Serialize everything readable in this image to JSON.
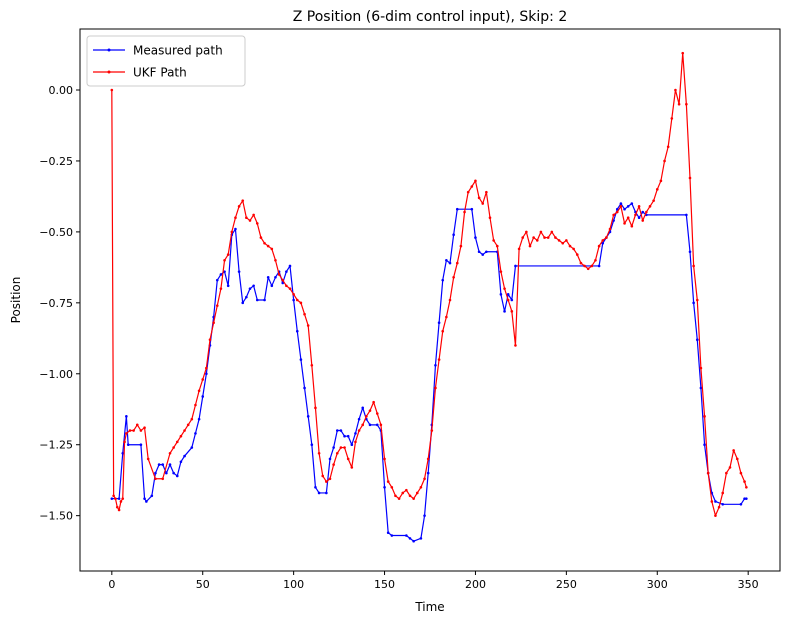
{
  "chart_data": {
    "type": "line",
    "title": "Z Position (6-dim control input), Skip: 2",
    "xlabel": "Time",
    "ylabel": "Position",
    "xlim": [
      -17.5,
      367.5
    ],
    "ylim": [
      -1.695,
      0.215
    ],
    "xticks": [
      0,
      50,
      100,
      150,
      200,
      250,
      300,
      350
    ],
    "xtick_labels": [
      "0",
      "50",
      "100",
      "150",
      "200",
      "250",
      "300",
      "350"
    ],
    "yticks": [
      0.0,
      -0.25,
      -0.5,
      -0.75,
      -1.0,
      -1.25,
      -1.5
    ],
    "ytick_labels": [
      "0.00",
      "−0.25",
      "−0.50",
      "−0.75",
      "−1.00",
      "−1.25",
      "−1.50"
    ],
    "grid": false,
    "legend": {
      "position": "top-left"
    },
    "series": [
      {
        "name": "Measured path",
        "color": "#0000ff",
        "points": [
          [
            0,
            -1.44
          ],
          [
            4,
            -1.44
          ],
          [
            6,
            -1.28
          ],
          [
            8,
            -1.15
          ],
          [
            9,
            -1.25
          ],
          [
            16,
            -1.25
          ],
          [
            18,
            -1.44
          ],
          [
            19,
            -1.45
          ],
          [
            22,
            -1.43
          ],
          [
            24,
            -1.35
          ],
          [
            26,
            -1.32
          ],
          [
            28,
            -1.32
          ],
          [
            30,
            -1.35
          ],
          [
            32,
            -1.32
          ],
          [
            34,
            -1.35
          ],
          [
            36,
            -1.36
          ],
          [
            38,
            -1.31
          ],
          [
            40,
            -1.29
          ],
          [
            44,
            -1.26
          ],
          [
            46,
            -1.21
          ],
          [
            48,
            -1.16
          ],
          [
            50,
            -1.08
          ],
          [
            52,
            -1.0
          ],
          [
            54,
            -0.9
          ],
          [
            56,
            -0.8
          ],
          [
            58,
            -0.67
          ],
          [
            60,
            -0.65
          ],
          [
            62,
            -0.64
          ],
          [
            64,
            -0.69
          ],
          [
            66,
            -0.51
          ],
          [
            68,
            -0.49
          ],
          [
            70,
            -0.64
          ],
          [
            72,
            -0.75
          ],
          [
            74,
            -0.73
          ],
          [
            76,
            -0.7
          ],
          [
            78,
            -0.69
          ],
          [
            80,
            -0.74
          ],
          [
            84,
            -0.74
          ],
          [
            86,
            -0.66
          ],
          [
            88,
            -0.69
          ],
          [
            90,
            -0.66
          ],
          [
            92,
            -0.64
          ],
          [
            94,
            -0.68
          ],
          [
            96,
            -0.64
          ],
          [
            98,
            -0.62
          ],
          [
            100,
            -0.74
          ],
          [
            102,
            -0.85
          ],
          [
            104,
            -0.95
          ],
          [
            106,
            -1.05
          ],
          [
            108,
            -1.15
          ],
          [
            110,
            -1.25
          ],
          [
            112,
            -1.4
          ],
          [
            114,
            -1.42
          ],
          [
            118,
            -1.42
          ],
          [
            120,
            -1.3
          ],
          [
            122,
            -1.26
          ],
          [
            124,
            -1.2
          ],
          [
            126,
            -1.2
          ],
          [
            128,
            -1.22
          ],
          [
            130,
            -1.22
          ],
          [
            132,
            -1.25
          ],
          [
            134,
            -1.21
          ],
          [
            136,
            -1.16
          ],
          [
            138,
            -1.12
          ],
          [
            140,
            -1.16
          ],
          [
            142,
            -1.18
          ],
          [
            146,
            -1.18
          ],
          [
            148,
            -1.2
          ],
          [
            150,
            -1.4
          ],
          [
            152,
            -1.56
          ],
          [
            154,
            -1.57
          ],
          [
            162,
            -1.57
          ],
          [
            164,
            -1.58
          ],
          [
            166,
            -1.59
          ],
          [
            170,
            -1.58
          ],
          [
            172,
            -1.5
          ],
          [
            174,
            -1.35
          ],
          [
            176,
            -1.18
          ],
          [
            178,
            -0.97
          ],
          [
            180,
            -0.82
          ],
          [
            182,
            -0.67
          ],
          [
            184,
            -0.6
          ],
          [
            186,
            -0.61
          ],
          [
            188,
            -0.51
          ],
          [
            190,
            -0.42
          ],
          [
            198,
            -0.42
          ],
          [
            200,
            -0.52
          ],
          [
            202,
            -0.57
          ],
          [
            204,
            -0.58
          ],
          [
            206,
            -0.57
          ],
          [
            212,
            -0.57
          ],
          [
            214,
            -0.72
          ],
          [
            216,
            -0.78
          ],
          [
            218,
            -0.72
          ],
          [
            220,
            -0.74
          ],
          [
            222,
            -0.62
          ],
          [
            268,
            -0.62
          ],
          [
            270,
            -0.54
          ],
          [
            272,
            -0.52
          ],
          [
            274,
            -0.5
          ],
          [
            276,
            -0.46
          ],
          [
            278,
            -0.42
          ],
          [
            280,
            -0.4
          ],
          [
            282,
            -0.42
          ],
          [
            284,
            -0.41
          ],
          [
            286,
            -0.4
          ],
          [
            288,
            -0.43
          ],
          [
            290,
            -0.45
          ],
          [
            292,
            -0.43
          ],
          [
            294,
            -0.44
          ],
          [
            316,
            -0.44
          ],
          [
            318,
            -0.57
          ],
          [
            320,
            -0.75
          ],
          [
            322,
            -0.88
          ],
          [
            324,
            -1.05
          ],
          [
            326,
            -1.25
          ],
          [
            328,
            -1.35
          ],
          [
            330,
            -1.42
          ],
          [
            332,
            -1.45
          ],
          [
            336,
            -1.46
          ],
          [
            346,
            -1.46
          ],
          [
            348,
            -1.44
          ],
          [
            349,
            -1.44
          ]
        ]
      },
      {
        "name": "UKF Path",
        "color": "#ff0000",
        "points": [
          [
            0,
            0.0
          ],
          [
            1,
            -1.43
          ],
          [
            2,
            -1.44
          ],
          [
            3,
            -1.47
          ],
          [
            4,
            -1.48
          ],
          [
            5,
            -1.45
          ],
          [
            6,
            -1.44
          ],
          [
            7,
            -1.24
          ],
          [
            8,
            -1.21
          ],
          [
            10,
            -1.2
          ],
          [
            12,
            -1.2
          ],
          [
            14,
            -1.18
          ],
          [
            16,
            -1.2
          ],
          [
            18,
            -1.19
          ],
          [
            20,
            -1.3
          ],
          [
            24,
            -1.37
          ],
          [
            28,
            -1.37
          ],
          [
            32,
            -1.28
          ],
          [
            34,
            -1.26
          ],
          [
            36,
            -1.24
          ],
          [
            38,
            -1.22
          ],
          [
            40,
            -1.2
          ],
          [
            42,
            -1.18
          ],
          [
            44,
            -1.16
          ],
          [
            46,
            -1.11
          ],
          [
            48,
            -1.06
          ],
          [
            50,
            -1.02
          ],
          [
            52,
            -0.98
          ],
          [
            54,
            -0.88
          ],
          [
            56,
            -0.82
          ],
          [
            58,
            -0.76
          ],
          [
            60,
            -0.7
          ],
          [
            62,
            -0.6
          ],
          [
            64,
            -0.58
          ],
          [
            66,
            -0.5
          ],
          [
            68,
            -0.45
          ],
          [
            70,
            -0.41
          ],
          [
            72,
            -0.39
          ],
          [
            74,
            -0.45
          ],
          [
            76,
            -0.46
          ],
          [
            78,
            -0.44
          ],
          [
            80,
            -0.47
          ],
          [
            82,
            -0.52
          ],
          [
            84,
            -0.54
          ],
          [
            86,
            -0.55
          ],
          [
            88,
            -0.56
          ],
          [
            90,
            -0.6
          ],
          [
            92,
            -0.65
          ],
          [
            94,
            -0.67
          ],
          [
            96,
            -0.69
          ],
          [
            98,
            -0.7
          ],
          [
            100,
            -0.72
          ],
          [
            102,
            -0.74
          ],
          [
            104,
            -0.75
          ],
          [
            106,
            -0.79
          ],
          [
            108,
            -0.83
          ],
          [
            110,
            -0.97
          ],
          [
            112,
            -1.12
          ],
          [
            114,
            -1.28
          ],
          [
            116,
            -1.36
          ],
          [
            118,
            -1.38
          ],
          [
            120,
            -1.37
          ],
          [
            122,
            -1.32
          ],
          [
            124,
            -1.28
          ],
          [
            126,
            -1.26
          ],
          [
            128,
            -1.26
          ],
          [
            130,
            -1.3
          ],
          [
            132,
            -1.33
          ],
          [
            134,
            -1.24
          ],
          [
            136,
            -1.2
          ],
          [
            138,
            -1.18
          ],
          [
            140,
            -1.15
          ],
          [
            142,
            -1.13
          ],
          [
            144,
            -1.1
          ],
          [
            146,
            -1.14
          ],
          [
            148,
            -1.18
          ],
          [
            150,
            -1.3
          ],
          [
            152,
            -1.38
          ],
          [
            154,
            -1.4
          ],
          [
            156,
            -1.43
          ],
          [
            158,
            -1.44
          ],
          [
            160,
            -1.42
          ],
          [
            162,
            -1.41
          ],
          [
            164,
            -1.43
          ],
          [
            166,
            -1.44
          ],
          [
            168,
            -1.42
          ],
          [
            170,
            -1.4
          ],
          [
            172,
            -1.37
          ],
          [
            174,
            -1.3
          ],
          [
            176,
            -1.2
          ],
          [
            178,
            -1.05
          ],
          [
            180,
            -0.95
          ],
          [
            182,
            -0.85
          ],
          [
            184,
            -0.8
          ],
          [
            186,
            -0.74
          ],
          [
            188,
            -0.66
          ],
          [
            190,
            -0.61
          ],
          [
            192,
            -0.55
          ],
          [
            194,
            -0.43
          ],
          [
            196,
            -0.36
          ],
          [
            198,
            -0.34
          ],
          [
            200,
            -0.32
          ],
          [
            202,
            -0.38
          ],
          [
            204,
            -0.4
          ],
          [
            206,
            -0.36
          ],
          [
            208,
            -0.45
          ],
          [
            210,
            -0.53
          ],
          [
            212,
            -0.55
          ],
          [
            214,
            -0.64
          ],
          [
            216,
            -0.7
          ],
          [
            218,
            -0.74
          ],
          [
            220,
            -0.78
          ],
          [
            222,
            -0.9
          ],
          [
            224,
            -0.56
          ],
          [
            226,
            -0.52
          ],
          [
            228,
            -0.5
          ],
          [
            230,
            -0.55
          ],
          [
            232,
            -0.52
          ],
          [
            234,
            -0.53
          ],
          [
            236,
            -0.5
          ],
          [
            238,
            -0.52
          ],
          [
            240,
            -0.52
          ],
          [
            242,
            -0.5
          ],
          [
            244,
            -0.52
          ],
          [
            246,
            -0.53
          ],
          [
            248,
            -0.54
          ],
          [
            250,
            -0.53
          ],
          [
            252,
            -0.55
          ],
          [
            254,
            -0.56
          ],
          [
            256,
            -0.58
          ],
          [
            258,
            -0.61
          ],
          [
            260,
            -0.62
          ],
          [
            262,
            -0.63
          ],
          [
            264,
            -0.62
          ],
          [
            266,
            -0.6
          ],
          [
            268,
            -0.55
          ],
          [
            270,
            -0.53
          ],
          [
            272,
            -0.52
          ],
          [
            274,
            -0.49
          ],
          [
            276,
            -0.44
          ],
          [
            278,
            -0.43
          ],
          [
            280,
            -0.41
          ],
          [
            282,
            -0.47
          ],
          [
            284,
            -0.45
          ],
          [
            286,
            -0.48
          ],
          [
            288,
            -0.44
          ],
          [
            290,
            -0.41
          ],
          [
            292,
            -0.46
          ],
          [
            294,
            -0.43
          ],
          [
            296,
            -0.41
          ],
          [
            298,
            -0.39
          ],
          [
            300,
            -0.35
          ],
          [
            302,
            -0.32
          ],
          [
            304,
            -0.25
          ],
          [
            306,
            -0.2
          ],
          [
            308,
            -0.1
          ],
          [
            310,
            0.0
          ],
          [
            312,
            -0.05
          ],
          [
            314,
            0.13
          ],
          [
            316,
            -0.05
          ],
          [
            318,
            -0.31
          ],
          [
            320,
            -0.62
          ],
          [
            322,
            -0.74
          ],
          [
            324,
            -0.98
          ],
          [
            326,
            -1.15
          ],
          [
            328,
            -1.35
          ],
          [
            330,
            -1.45
          ],
          [
            332,
            -1.5
          ],
          [
            334,
            -1.47
          ],
          [
            336,
            -1.42
          ],
          [
            338,
            -1.35
          ],
          [
            340,
            -1.33
          ],
          [
            342,
            -1.27
          ],
          [
            344,
            -1.3
          ],
          [
            346,
            -1.35
          ],
          [
            348,
            -1.38
          ],
          [
            349,
            -1.4
          ]
        ]
      }
    ]
  }
}
